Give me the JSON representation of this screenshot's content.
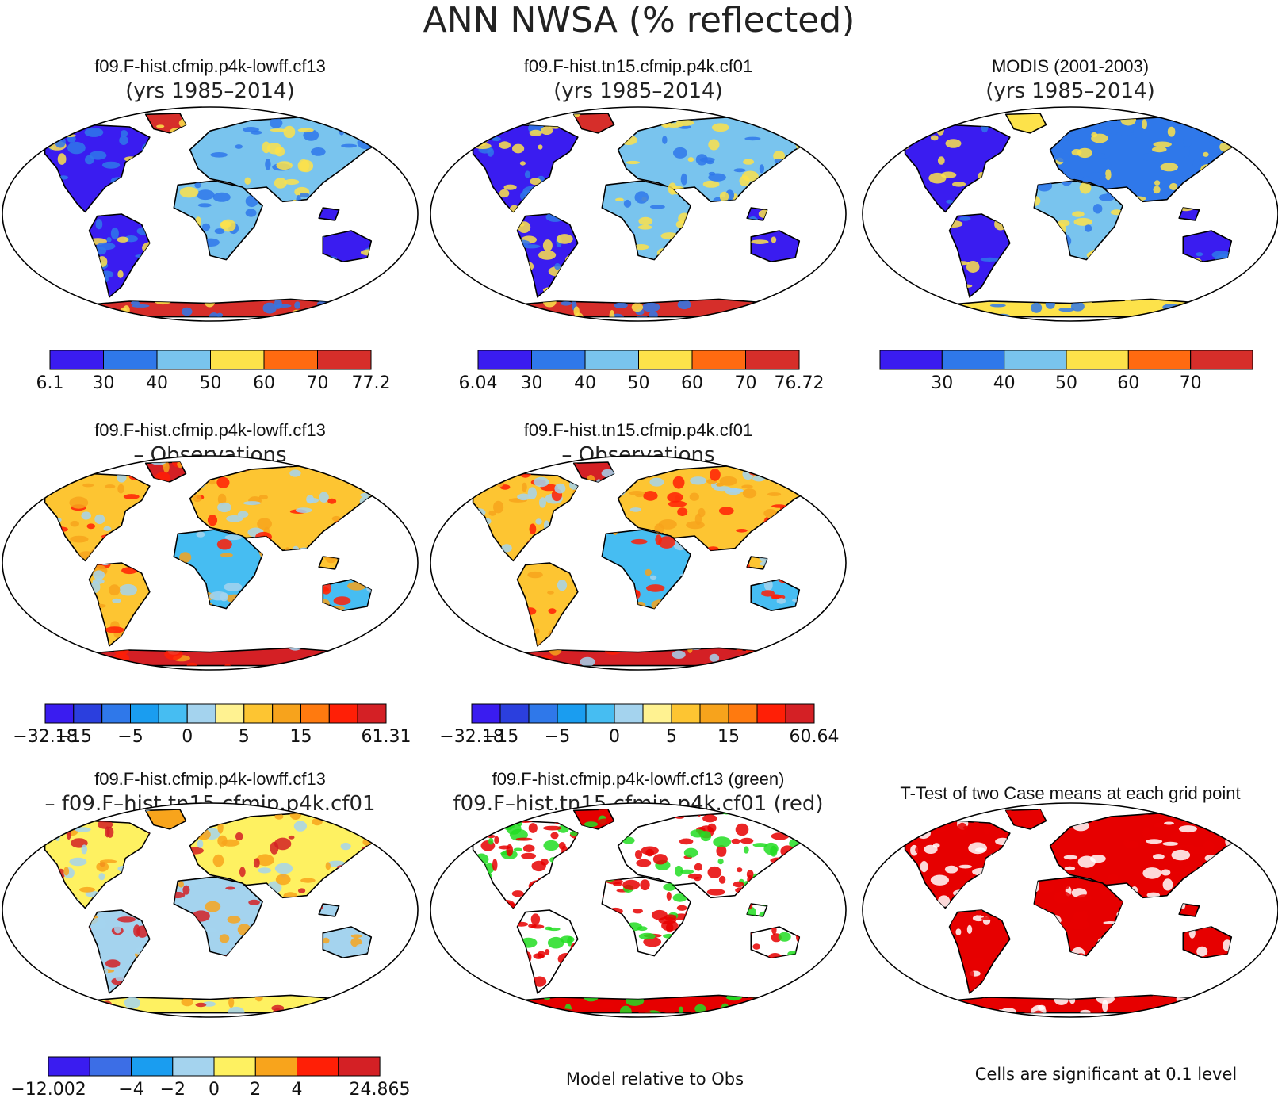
{
  "figure": {
    "title": "ANN NWSA (% reflected)",
    "footnote_mid": "Model relative to Obs",
    "footnote_right": "Cells are significant at 0.1 level"
  },
  "panels": [
    {
      "id": "model1",
      "title": "f09.F-hist.cfmip.p4k-lowff.cf13",
      "subtitle": "(yrs 1985–2014)",
      "palette": "abs",
      "cb": 0
    },
    {
      "id": "model2",
      "title": "f09.F-hist.tn15.cfmip.p4k.cf01",
      "subtitle": "(yrs 1985–2014)",
      "palette": "abs",
      "cb": 1
    },
    {
      "id": "obs",
      "title": "MODIS (2001-2003)",
      "subtitle": "(yrs 1985–2014)",
      "palette": "obs",
      "cb": 2
    },
    {
      "id": "diff1",
      "title": "f09.F-hist.cfmip.p4k-lowff.cf13",
      "subtitle": "– Observations",
      "palette": "diff",
      "cb": 3
    },
    {
      "id": "diff2",
      "title": "f09.F-hist.tn15.cfmip.p4k.cf01",
      "subtitle": "– Observations",
      "palette": "diff",
      "cb": 4
    },
    {
      "id": "diff12",
      "title": "f09.F-hist.cfmip.p4k-lowff.cf13",
      "subtitle": "– f09.F–hist.tn15.cfmip.p4k.cf01",
      "palette": "diff12",
      "cb": 5
    },
    {
      "id": "compare",
      "title": "f09.F-hist.cfmip.p4k-lowff.cf13 (green)",
      "subtitle": "f09.F–hist.tn15.cfmip.p4k.cf01 (red)",
      "palette": "compare",
      "cb": null
    },
    {
      "id": "ttest",
      "title": "T-Test of two Case means at each grid point",
      "subtitle": "",
      "palette": "ttest",
      "cb": null
    }
  ],
  "chart_data": {
    "type": "heatmap",
    "variable": "NWSA",
    "units": "% reflected",
    "season": "ANN",
    "colorbars": [
      {
        "panel": "model1",
        "colors": [
          "#3a1cf0",
          "#2f78ea",
          "#79c4ee",
          "#fde24a",
          "#ff6a10",
          "#d62e2a"
        ],
        "ticks": [
          "6.1",
          "30",
          "40",
          "50",
          "60",
          "70",
          "77.2"
        ]
      },
      {
        "panel": "model2",
        "colors": [
          "#3a1cf0",
          "#2f78ea",
          "#79c4ee",
          "#fde24a",
          "#ff6a10",
          "#d62e2a"
        ],
        "ticks": [
          "6.04",
          "30",
          "40",
          "50",
          "60",
          "70",
          "76.72"
        ]
      },
      {
        "panel": "obs",
        "colors": [
          "#3a1cf0",
          "#2f78ea",
          "#79c4ee",
          "#fde24a",
          "#ff6a10",
          "#d62e2a"
        ],
        "ticks": [
          "",
          "30",
          "40",
          "50",
          "60",
          "70",
          ""
        ]
      },
      {
        "panel": "diff1",
        "colors": [
          "#3a1cf0",
          "#2b3fde",
          "#2f78ea",
          "#1a9df0",
          "#46bdf2",
          "#a4d3ee",
          "#fff291",
          "#fdc532",
          "#f7a31c",
          "#ff7a0f",
          "#ff1f06",
          "#d42025"
        ],
        "ticks": [
          "−32.18",
          "−15",
          "",
          "−5",
          "",
          "0",
          "",
          "5",
          "",
          "15",
          "",
          "",
          "61.31"
        ]
      },
      {
        "panel": "diff2",
        "colors": [
          "#3a1cf0",
          "#2b3fde",
          "#2f78ea",
          "#1a9df0",
          "#46bdf2",
          "#a4d3ee",
          "#fff291",
          "#fdc532",
          "#f7a31c",
          "#ff7a0f",
          "#ff1f06",
          "#d42025"
        ],
        "ticks": [
          "−32.18",
          "−15",
          "",
          "−5",
          "",
          "0",
          "",
          "5",
          "",
          "15",
          "",
          "",
          "60.64"
        ]
      },
      {
        "panel": "diff12",
        "colors": [
          "#3a1cf0",
          "#3c6ee6",
          "#1a9df0",
          "#a4d3ee",
          "#fef161",
          "#f8a41c",
          "#ff1f06",
          "#d42025"
        ],
        "ticks": [
          "−12.002",
          "",
          "−4",
          "−2",
          "0",
          "2",
          "4",
          "",
          "24.865"
        ]
      }
    ],
    "legend_text": {
      "green": "f09.F-hist.cfmip.p4k-lowff.cf13",
      "red": "f09.F-hist.tn15.cfmip.p4k.cf01"
    },
    "significance_level": 0.1
  }
}
